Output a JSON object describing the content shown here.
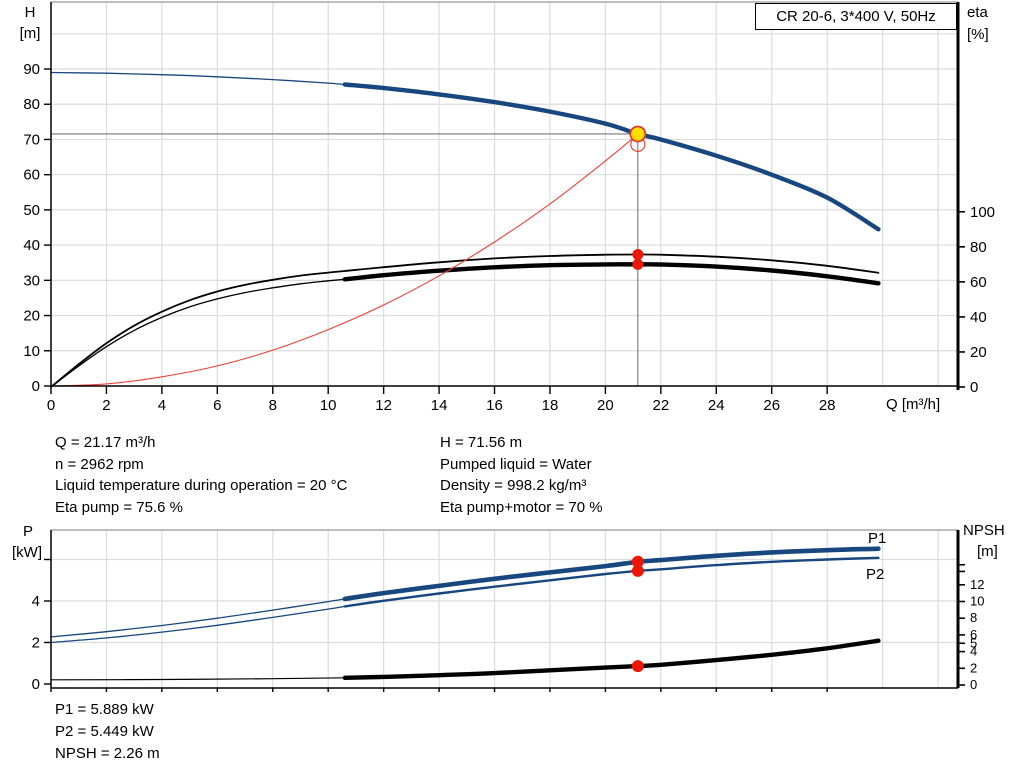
{
  "colors": {
    "curve_blue": "#17477e",
    "curve_black": "#000000",
    "system_red": "#e8433a",
    "dot_red": "#ee1705",
    "duty_yellow": "#ffdf00",
    "grid": "#dcdcdc",
    "guide": "#787878"
  },
  "info_top_left": [
    "Q = 21.17 m³/h",
    "n = 2962 rpm",
    "Liquid temperature during operation = 20 °C",
    "Eta pump = 75.6 %"
  ],
  "info_top_right": [
    "H = 71.56 m",
    "Pumped liquid = Water",
    "Density = 998.2 kg/m³",
    "Eta pump+motor = 70 %"
  ],
  "info_bottom": [
    "P1 = 5.889 kW",
    "P2 = 5.449 kW",
    "NPSH = 2.26 m"
  ],
  "chart_data": [
    {
      "type": "line",
      "title": "CR 20-6, 3*400 V, 50Hz",
      "x_axis": {
        "label": "Q [m³/h]",
        "min": 0,
        "max": 32.7,
        "ticks": [
          0,
          2,
          4,
          6,
          8,
          10,
          12,
          14,
          16,
          18,
          20,
          22,
          24,
          26,
          28
        ]
      },
      "y_left": {
        "label": "H",
        "unit": "[m]",
        "min": 0,
        "max": 109,
        "ticks": [
          {
            "v": 0,
            "label": "0"
          },
          {
            "v": 10,
            "label": "10"
          },
          {
            "v": 20,
            "label": "20"
          },
          {
            "v": 30,
            "label": "30"
          },
          {
            "v": 40,
            "label": "40"
          },
          {
            "v": 50,
            "label": "50"
          },
          {
            "v": 60,
            "label": "60"
          },
          {
            "v": 70,
            "label": "70"
          },
          {
            "v": 80,
            "label": "80"
          },
          {
            "v": 90,
            "label": "90"
          }
        ]
      },
      "y_right": {
        "label": "eta",
        "unit": "[%]",
        "min": 0,
        "max": 100,
        "ticks": [
          {
            "v": 0,
            "label": "0"
          },
          {
            "v": 20,
            "label": "20"
          },
          {
            "v": 40,
            "label": "40"
          },
          {
            "v": 60,
            "label": "60"
          },
          {
            "v": 80,
            "label": "80"
          },
          {
            "v": 100,
            "label": "100"
          }
        ]
      },
      "duty_point": {
        "q": 21.17,
        "h": 71.56,
        "eta_pump": 75.6,
        "eta_pump_motor": 70
      },
      "series": [
        {
          "name": "head",
          "axis": "left",
          "color": "#17477e",
          "width_thin": 1.3,
          "width_thick": 4.4,
          "thin_until": 10.6,
          "points": [
            [
              0,
              89
            ],
            [
              2,
              88.8
            ],
            [
              4,
              88.4
            ],
            [
              6,
              87.8
            ],
            [
              8,
              87
            ],
            [
              10,
              86
            ],
            [
              10.6,
              85.6
            ],
            [
              12,
              84.6
            ],
            [
              14,
              82.8
            ],
            [
              16,
              80.6
            ],
            [
              18,
              77.9
            ],
            [
              20,
              74.5
            ],
            [
              21.17,
              71.56
            ],
            [
              22,
              70
            ],
            [
              24,
              65.4
            ],
            [
              26,
              60
            ],
            [
              28,
              53.5
            ],
            [
              29.85,
              44.5
            ]
          ]
        },
        {
          "name": "eta-pump",
          "axis": "right",
          "color": "#000000",
          "width_thin": 1.8,
          "width_thick": 1.8,
          "thin_until": null,
          "points": [
            [
              0,
              0
            ],
            [
              1,
              13
            ],
            [
              2,
              25
            ],
            [
              3,
              35
            ],
            [
              4,
              43
            ],
            [
              5,
              49.5
            ],
            [
              6,
              54.5
            ],
            [
              7,
              58.3
            ],
            [
              8,
              61.2
            ],
            [
              9,
              63.6
            ],
            [
              10,
              65.3
            ],
            [
              10.6,
              66.2
            ],
            [
              12,
              68.4
            ],
            [
              14,
              71.2
            ],
            [
              16,
              73.4
            ],
            [
              18,
              74.8
            ],
            [
              20,
              75.5
            ],
            [
              21.17,
              75.6
            ],
            [
              22,
              75.5
            ],
            [
              24,
              74.4
            ],
            [
              26,
              72.3
            ],
            [
              28,
              69.2
            ],
            [
              29.85,
              65.2
            ]
          ]
        },
        {
          "name": "eta-pump-motor",
          "axis": "right",
          "color": "#000000",
          "width_thin": 1.3,
          "width_thick": 4.4,
          "thin_until": 10.6,
          "points": [
            [
              0,
              0
            ],
            [
              1,
              12
            ],
            [
              2,
              23
            ],
            [
              3,
              32.3
            ],
            [
              4,
              39.7
            ],
            [
              5,
              45.7
            ],
            [
              6,
              50.3
            ],
            [
              7,
              53.9
            ],
            [
              8,
              56.6
            ],
            [
              9,
              58.9
            ],
            [
              10,
              60.6
            ],
            [
              10.6,
              61.5
            ],
            [
              12,
              63.8
            ],
            [
              14,
              66.4
            ],
            [
              16,
              68.3
            ],
            [
              18,
              69.5
            ],
            [
              20,
              70
            ],
            [
              21.17,
              70
            ],
            [
              22,
              69.9
            ],
            [
              24,
              68.7
            ],
            [
              26,
              66.5
            ],
            [
              28,
              63.2
            ],
            [
              29.85,
              59.2
            ]
          ]
        },
        {
          "name": "system-curve",
          "axis": "left",
          "color": "#e8433a",
          "width_thin": 1.1,
          "width_thick": 1.1,
          "thin_until": null,
          "points": [
            [
              0,
              0
            ],
            [
              2,
              0.6
            ],
            [
              4,
              2.6
            ],
            [
              6,
              5.7
            ],
            [
              8,
              10.2
            ],
            [
              10,
              16
            ],
            [
              12,
              23
            ],
            [
              14,
              31.3
            ],
            [
              16,
              40.9
            ],
            [
              18,
              51.7
            ],
            [
              20,
              63.9
            ],
            [
              21.17,
              71.56
            ]
          ]
        }
      ],
      "markers": [
        {
          "shape": "circle",
          "axis": "left",
          "q": 21.17,
          "v": 68.6,
          "r": 7,
          "fill": "none",
          "stroke": "#ef4438",
          "sw": 1.2,
          "name": "requested-duty-ring",
          "interactable": false
        },
        {
          "shape": "circle",
          "axis": "left",
          "q": 21.17,
          "v": 71.56,
          "r": 7.5,
          "fill": "#ffdf00",
          "stroke": "#e03a2f",
          "sw": 1.8,
          "name": "duty-point-marker",
          "interactable": true
        },
        {
          "shape": "circle",
          "axis": "right",
          "q": 21.17,
          "v": 75.6,
          "r": 5.5,
          "fill": "#ee1705",
          "stroke": "none",
          "sw": 0,
          "name": "eta-pump-dot",
          "interactable": false
        },
        {
          "shape": "circle",
          "axis": "right",
          "q": 21.17,
          "v": 70,
          "r": 5.5,
          "fill": "#ee1705",
          "stroke": "none",
          "sw": 0,
          "name": "eta-pump-motor-dot",
          "interactable": false
        }
      ]
    },
    {
      "type": "line",
      "x_axis": {
        "min": 0,
        "max": 32.7,
        "ticks": [
          0,
          2,
          4,
          6,
          8,
          10,
          12,
          14,
          16,
          18,
          20,
          22,
          24,
          26,
          28
        ]
      },
      "y_left": {
        "label": "P",
        "unit": "[kW]",
        "min": 0,
        "max": 7.4,
        "ticks": [
          {
            "v": 0,
            "label": "0"
          },
          {
            "v": 2,
            "label": "2"
          },
          {
            "v": 4,
            "label": "4"
          },
          {
            "v": 6,
            "label": ""
          }
        ]
      },
      "y_right": {
        "label": "NPSH",
        "unit": "[m]",
        "min": 0,
        "max": 18.5,
        "ticks": [
          {
            "v": 0,
            "label": "0"
          },
          {
            "v": 2,
            "label": "2"
          },
          {
            "v": 4,
            "label": "4"
          },
          {
            "v": 5,
            "label": "5"
          },
          {
            "v": 6,
            "label": "6"
          },
          {
            "v": 8,
            "label": "8"
          },
          {
            "v": 10,
            "label": "10"
          },
          {
            "v": 12,
            "label": "12"
          },
          {
            "v": 13.6,
            "label": ""
          },
          {
            "v": 14.4,
            "label": ""
          }
        ]
      },
      "duty_point": {
        "q": 21.17,
        "p1": 5.889,
        "p2": 5.449,
        "npsh": 2.26
      },
      "series": [
        {
          "name": "P1",
          "label": "P1",
          "axis": "left",
          "color": "#17477e",
          "width_thin": 1.3,
          "width_thick": 4.6,
          "thin_until": 10.6,
          "points": [
            [
              0,
              2.27
            ],
            [
              2,
              2.52
            ],
            [
              4,
              2.82
            ],
            [
              6,
              3.17
            ],
            [
              8,
              3.56
            ],
            [
              10,
              3.97
            ],
            [
              10.6,
              4.1
            ],
            [
              12,
              4.38
            ],
            [
              14,
              4.73
            ],
            [
              16,
              5.07
            ],
            [
              18,
              5.38
            ],
            [
              20,
              5.68
            ],
            [
              21.17,
              5.889
            ],
            [
              22,
              5.97
            ],
            [
              24,
              6.18
            ],
            [
              26,
              6.34
            ],
            [
              28,
              6.45
            ],
            [
              29.85,
              6.52
            ]
          ]
        },
        {
          "name": "P2",
          "label": "P2",
          "axis": "left",
          "color": "#17477e",
          "width_thin": 1.3,
          "width_thick": 2.4,
          "thin_until": 10.6,
          "points": [
            [
              0,
              2.0
            ],
            [
              2,
              2.22
            ],
            [
              4,
              2.5
            ],
            [
              6,
              2.83
            ],
            [
              8,
              3.21
            ],
            [
              10,
              3.61
            ],
            [
              10.6,
              3.74
            ],
            [
              12,
              4.01
            ],
            [
              14,
              4.36
            ],
            [
              16,
              4.69
            ],
            [
              18,
              5.0
            ],
            [
              20,
              5.3
            ],
            [
              21.17,
              5.449
            ],
            [
              22,
              5.53
            ],
            [
              24,
              5.73
            ],
            [
              26,
              5.89
            ],
            [
              28,
              6.0
            ],
            [
              29.85,
              6.08
            ]
          ]
        },
        {
          "name": "NPSH",
          "axis": "right",
          "color": "#000000",
          "width_thin": 1.2,
          "width_thick": 4.4,
          "thin_until": 10.6,
          "points": [
            [
              0,
              0.62
            ],
            [
              4,
              0.66
            ],
            [
              8,
              0.76
            ],
            [
              10.6,
              0.86
            ],
            [
              12,
              0.97
            ],
            [
              14,
              1.17
            ],
            [
              16,
              1.42
            ],
            [
              18,
              1.76
            ],
            [
              20,
              2.08
            ],
            [
              21.17,
              2.26
            ],
            [
              22,
              2.42
            ],
            [
              24,
              2.98
            ],
            [
              26,
              3.62
            ],
            [
              28,
              4.4
            ],
            [
              29.85,
              5.3
            ]
          ]
        }
      ],
      "markers": [
        {
          "shape": "circle",
          "axis": "left",
          "q": 21.17,
          "v": 5.889,
          "r": 6,
          "fill": "#ee1705",
          "stroke": "none",
          "sw": 0,
          "name": "p1-dot",
          "interactable": false
        },
        {
          "shape": "circle",
          "axis": "left",
          "q": 21.17,
          "v": 5.449,
          "r": 6,
          "fill": "#ee1705",
          "stroke": "none",
          "sw": 0,
          "name": "p2-dot",
          "interactable": false
        },
        {
          "shape": "circle",
          "axis": "right",
          "q": 21.17,
          "v": 2.26,
          "r": 6,
          "fill": "#ee1705",
          "stroke": "none",
          "sw": 0,
          "name": "npsh-dot",
          "interactable": false
        }
      ]
    }
  ]
}
